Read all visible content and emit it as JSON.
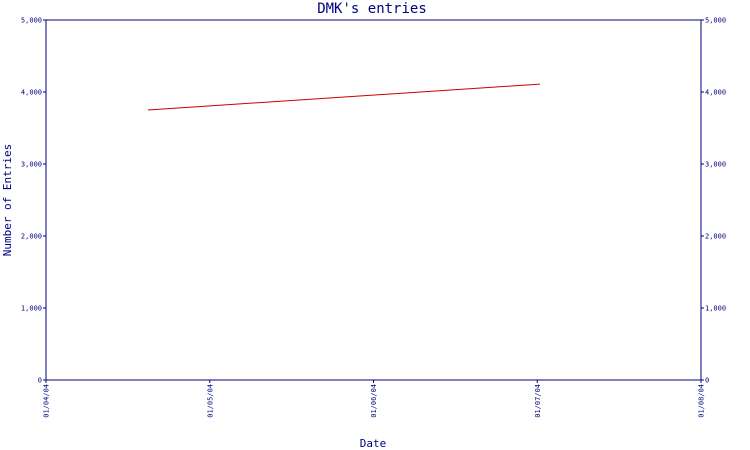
{
  "chart_data": {
    "type": "line",
    "title": "DMK's entries",
    "xlabel": "Date",
    "ylabel": "Number of Entries",
    "x_ticks": [
      "01/04/04",
      "01/05/04",
      "01/06/04",
      "01/07/04",
      "01/08/04"
    ],
    "y_ticks": [
      "0",
      "1,000",
      "2,000",
      "3,000",
      "4,000",
      "5,000"
    ],
    "ylim": [
      0,
      5000
    ],
    "xlim": [
      "2004-04-01",
      "2004-08-01"
    ],
    "grid": false,
    "series": [
      {
        "color": "#cc0000",
        "points": [
          {
            "x": "2004-04-20",
            "y": 3750
          },
          {
            "x": "2004-07-02",
            "y": 4110
          }
        ]
      }
    ]
  }
}
